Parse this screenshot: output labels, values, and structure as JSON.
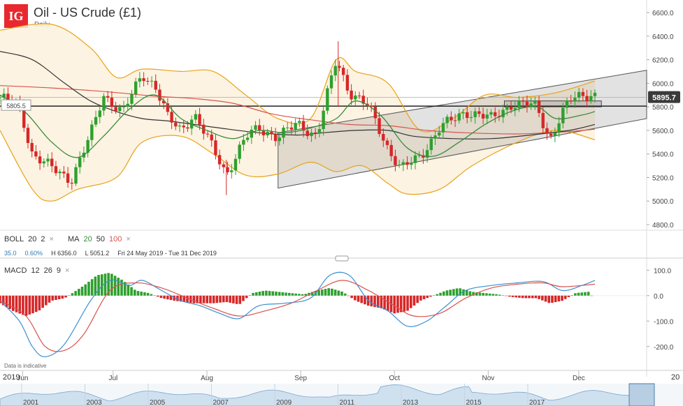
{
  "header": {
    "logo_text": "IG",
    "title": "Oil - US Crude (£1)",
    "subtitle": "Daily"
  },
  "indicators": {
    "boll": {
      "label": "BOLL",
      "p1": "20",
      "p2": "2"
    },
    "ma": {
      "label": "MA",
      "p1": "20",
      "p2": "50",
      "p3": "100"
    },
    "macd": {
      "label": "MACD",
      "p1": "12",
      "p2": "26",
      "p3": "9"
    },
    "close_icon": "×"
  },
  "stats": {
    "change": "35.0",
    "change_pct": "0.60%",
    "high": "H 6356.0",
    "low": "L 5051.2",
    "range": "Fri 24 May 2019 - Tue 31 Dec 2019"
  },
  "note": "Data is indicative",
  "year_left": "2019",
  "year_right": "20",
  "colors": {
    "up": "#2ea02e",
    "down": "#d62728",
    "boll": "#e8a317",
    "ma20": "#3a8a3a",
    "ma50": "#333333",
    "ma100": "#d9534f",
    "macd": "#3b8ed0",
    "signal": "#d9534f",
    "price_tag": "#3a3a3a",
    "level_tag": "#ffffff"
  },
  "chart_data": [
    {
      "type": "candlestick",
      "ylim": [
        4800,
        6600
      ],
      "y_ticks": [
        "6600.0",
        "6400.0",
        "6200.0",
        "6000.0",
        "5800.0",
        "5600.0",
        "5400.0",
        "5200.0",
        "5000.0",
        "4800.0"
      ],
      "x_tick_labels": [
        "Jun",
        "Jul",
        "Aug",
        "Sep",
        "Oct",
        "Nov",
        "Dec"
      ],
      "current_price": "5895.7",
      "level_label": "5805.5",
      "level_value": 5805.5,
      "channel": {
        "lower": [
          [
            0.43,
            5110
          ],
          [
            1.0,
            5700
          ]
        ],
        "upper": [
          [
            0.43,
            5580
          ],
          [
            1.0,
            6110
          ]
        ]
      },
      "box": {
        "x": [
          0.78,
          0.93
        ],
        "y": [
          5800,
          5850
        ]
      },
      "anchors": [
        {
          "t": 0.0,
          "c": 5880
        },
        {
          "t": 0.03,
          "c": 5800
        },
        {
          "t": 0.05,
          "c": 5400
        },
        {
          "t": 0.08,
          "c": 5280
        },
        {
          "t": 0.11,
          "c": 5180
        },
        {
          "t": 0.14,
          "c": 5560
        },
        {
          "t": 0.16,
          "c": 5900
        },
        {
          "t": 0.19,
          "c": 5750
        },
        {
          "t": 0.22,
          "c": 6080
        },
        {
          "t": 0.24,
          "c": 5980
        },
        {
          "t": 0.26,
          "c": 5700
        },
        {
          "t": 0.28,
          "c": 5600
        },
        {
          "t": 0.3,
          "c": 5740
        },
        {
          "t": 0.32,
          "c": 5540
        },
        {
          "t": 0.35,
          "c": 5230
        },
        {
          "t": 0.38,
          "c": 5540
        },
        {
          "t": 0.4,
          "c": 5620
        },
        {
          "t": 0.43,
          "c": 5540
        },
        {
          "t": 0.46,
          "c": 5660
        },
        {
          "t": 0.49,
          "c": 5550
        },
        {
          "t": 0.52,
          "c": 6200
        },
        {
          "t": 0.54,
          "c": 5930
        },
        {
          "t": 0.57,
          "c": 5800
        },
        {
          "t": 0.6,
          "c": 5450
        },
        {
          "t": 0.62,
          "c": 5270
        },
        {
          "t": 0.65,
          "c": 5380
        },
        {
          "t": 0.68,
          "c": 5620
        },
        {
          "t": 0.72,
          "c": 5760
        },
        {
          "t": 0.76,
          "c": 5700
        },
        {
          "t": 0.79,
          "c": 5820
        },
        {
          "t": 0.83,
          "c": 5810
        },
        {
          "t": 0.85,
          "c": 5520
        },
        {
          "t": 0.88,
          "c": 5850
        },
        {
          "t": 0.9,
          "c": 5910
        },
        {
          "t": 0.92,
          "c": 5895
        }
      ],
      "boll_upper": [
        [
          0.0,
          6450
        ],
        [
          0.08,
          6500
        ],
        [
          0.14,
          6300
        ],
        [
          0.18,
          6050
        ],
        [
          0.22,
          6120
        ],
        [
          0.28,
          6100
        ],
        [
          0.33,
          6100
        ],
        [
          0.38,
          5900
        ],
        [
          0.43,
          5700
        ],
        [
          0.48,
          5700
        ],
        [
          0.52,
          6200
        ],
        [
          0.55,
          6100
        ],
        [
          0.6,
          6000
        ],
        [
          0.65,
          5600
        ],
        [
          0.7,
          5700
        ],
        [
          0.75,
          5900
        ],
        [
          0.8,
          5880
        ],
        [
          0.86,
          5920
        ],
        [
          0.92,
          6020
        ]
      ],
      "boll_lower": [
        [
          0.0,
          5600
        ],
        [
          0.05,
          5100
        ],
        [
          0.08,
          5000
        ],
        [
          0.12,
          5100
        ],
        [
          0.18,
          5200
        ],
        [
          0.22,
          5500
        ],
        [
          0.28,
          5550
        ],
        [
          0.33,
          5400
        ],
        [
          0.38,
          5220
        ],
        [
          0.43,
          5230
        ],
        [
          0.48,
          5330
        ],
        [
          0.52,
          5250
        ],
        [
          0.56,
          5300
        ],
        [
          0.6,
          5150
        ],
        [
          0.63,
          5060
        ],
        [
          0.68,
          5100
        ],
        [
          0.73,
          5300
        ],
        [
          0.8,
          5500
        ],
        [
          0.86,
          5600
        ],
        [
          0.92,
          5520
        ]
      ],
      "ma20": [
        [
          0.0,
          5900
        ],
        [
          0.04,
          5750
        ],
        [
          0.08,
          5500
        ],
        [
          0.12,
          5370
        ],
        [
          0.16,
          5550
        ],
        [
          0.2,
          5780
        ],
        [
          0.24,
          5900
        ],
        [
          0.28,
          5700
        ],
        [
          0.32,
          5600
        ],
        [
          0.36,
          5530
        ],
        [
          0.4,
          5600
        ],
        [
          0.44,
          5580
        ],
        [
          0.48,
          5620
        ],
        [
          0.52,
          5700
        ],
        [
          0.55,
          5850
        ],
        [
          0.59,
          5720
        ],
        [
          0.63,
          5450
        ],
        [
          0.67,
          5380
        ],
        [
          0.71,
          5500
        ],
        [
          0.75,
          5650
        ],
        [
          0.79,
          5760
        ],
        [
          0.83,
          5800
        ],
        [
          0.86,
          5700
        ],
        [
          0.9,
          5730
        ],
        [
          0.92,
          5760
        ]
      ],
      "ma50": [
        [
          0.0,
          6270
        ],
        [
          0.05,
          6200
        ],
        [
          0.1,
          6000
        ],
        [
          0.14,
          5850
        ],
        [
          0.18,
          5760
        ],
        [
          0.22,
          5700
        ],
        [
          0.26,
          5680
        ],
        [
          0.3,
          5650
        ],
        [
          0.34,
          5620
        ],
        [
          0.4,
          5580
        ],
        [
          0.46,
          5560
        ],
        [
          0.5,
          5580
        ],
        [
          0.55,
          5600
        ],
        [
          0.6,
          5600
        ],
        [
          0.64,
          5550
        ],
        [
          0.7,
          5530
        ],
        [
          0.76,
          5530
        ],
        [
          0.82,
          5560
        ],
        [
          0.88,
          5600
        ],
        [
          0.92,
          5650
        ]
      ],
      "ma100": [
        [
          0.0,
          5980
        ],
        [
          0.08,
          5960
        ],
        [
          0.16,
          5930
        ],
        [
          0.24,
          5890
        ],
        [
          0.3,
          5870
        ],
        [
          0.36,
          5830
        ],
        [
          0.42,
          5740
        ],
        [
          0.48,
          5690
        ],
        [
          0.54,
          5650
        ],
        [
          0.6,
          5640
        ],
        [
          0.66,
          5600
        ],
        [
          0.72,
          5580
        ],
        [
          0.8,
          5570
        ],
        [
          0.88,
          5590
        ],
        [
          0.92,
          5610
        ]
      ]
    },
    {
      "type": "macd",
      "ylim": [
        -250,
        120
      ],
      "y_ticks": [
        "100.0",
        "0.0",
        "-100.0",
        "-200.0"
      ],
      "macd_line": [
        [
          0.0,
          -20
        ],
        [
          0.03,
          -100
        ],
        [
          0.05,
          -200
        ],
        [
          0.07,
          -240
        ],
        [
          0.1,
          -190
        ],
        [
          0.14,
          -20
        ],
        [
          0.17,
          60
        ],
        [
          0.2,
          40
        ],
        [
          0.22,
          60
        ],
        [
          0.25,
          20
        ],
        [
          0.28,
          -20
        ],
        [
          0.31,
          -40
        ],
        [
          0.34,
          -70
        ],
        [
          0.37,
          -90
        ],
        [
          0.4,
          -40
        ],
        [
          0.44,
          -30
        ],
        [
          0.48,
          -10
        ],
        [
          0.51,
          80
        ],
        [
          0.54,
          80
        ],
        [
          0.57,
          -20
        ],
        [
          0.6,
          -60
        ],
        [
          0.63,
          -120
        ],
        [
          0.66,
          -100
        ],
        [
          0.69,
          -40
        ],
        [
          0.72,
          20
        ],
        [
          0.76,
          40
        ],
        [
          0.8,
          50
        ],
        [
          0.84,
          55
        ],
        [
          0.87,
          20
        ],
        [
          0.9,
          40
        ],
        [
          0.92,
          60
        ]
      ],
      "signal_line": [
        [
          0.0,
          -20
        ],
        [
          0.04,
          -80
        ],
        [
          0.07,
          -200
        ],
        [
          0.1,
          -215
        ],
        [
          0.13,
          -150
        ],
        [
          0.17,
          20
        ],
        [
          0.21,
          50
        ],
        [
          0.25,
          30
        ],
        [
          0.29,
          -10
        ],
        [
          0.33,
          -50
        ],
        [
          0.37,
          -80
        ],
        [
          0.41,
          -60
        ],
        [
          0.45,
          -30
        ],
        [
          0.49,
          20
        ],
        [
          0.53,
          60
        ],
        [
          0.57,
          20
        ],
        [
          0.61,
          -40
        ],
        [
          0.64,
          -80
        ],
        [
          0.68,
          -70
        ],
        [
          0.72,
          -10
        ],
        [
          0.76,
          30
        ],
        [
          0.8,
          45
        ],
        [
          0.84,
          50
        ],
        [
          0.87,
          35
        ],
        [
          0.92,
          45
        ]
      ],
      "histogram": [
        [
          0.0,
          -30
        ],
        [
          0.02,
          -60
        ],
        [
          0.04,
          -80
        ],
        [
          0.06,
          -60
        ],
        [
          0.08,
          -20
        ],
        [
          0.1,
          -10
        ],
        [
          0.13,
          40
        ],
        [
          0.15,
          80
        ],
        [
          0.17,
          90
        ],
        [
          0.19,
          60
        ],
        [
          0.21,
          20
        ],
        [
          0.23,
          10
        ],
        [
          0.25,
          -10
        ],
        [
          0.27,
          -20
        ],
        [
          0.3,
          -30
        ],
        [
          0.33,
          -30
        ],
        [
          0.35,
          -25
        ],
        [
          0.37,
          -35
        ],
        [
          0.39,
          10
        ],
        [
          0.41,
          20
        ],
        [
          0.43,
          15
        ],
        [
          0.45,
          10
        ],
        [
          0.47,
          5
        ],
        [
          0.49,
          20
        ],
        [
          0.51,
          30
        ],
        [
          0.53,
          15
        ],
        [
          0.55,
          -20
        ],
        [
          0.57,
          -40
        ],
        [
          0.59,
          -50
        ],
        [
          0.61,
          -70
        ],
        [
          0.63,
          -60
        ],
        [
          0.65,
          -20
        ],
        [
          0.67,
          0
        ],
        [
          0.69,
          20
        ],
        [
          0.71,
          30
        ],
        [
          0.73,
          15
        ],
        [
          0.75,
          10
        ],
        [
          0.77,
          5
        ],
        [
          0.79,
          -5
        ],
        [
          0.81,
          -10
        ],
        [
          0.83,
          -10
        ],
        [
          0.85,
          -30
        ],
        [
          0.87,
          -20
        ],
        [
          0.89,
          10
        ],
        [
          0.91,
          15
        ]
      ]
    },
    {
      "type": "area",
      "x_tick_labels": [
        "2001",
        "2003",
        "2005",
        "2007",
        "2009",
        "2011",
        "2013",
        "2015",
        "2017"
      ]
    }
  ]
}
